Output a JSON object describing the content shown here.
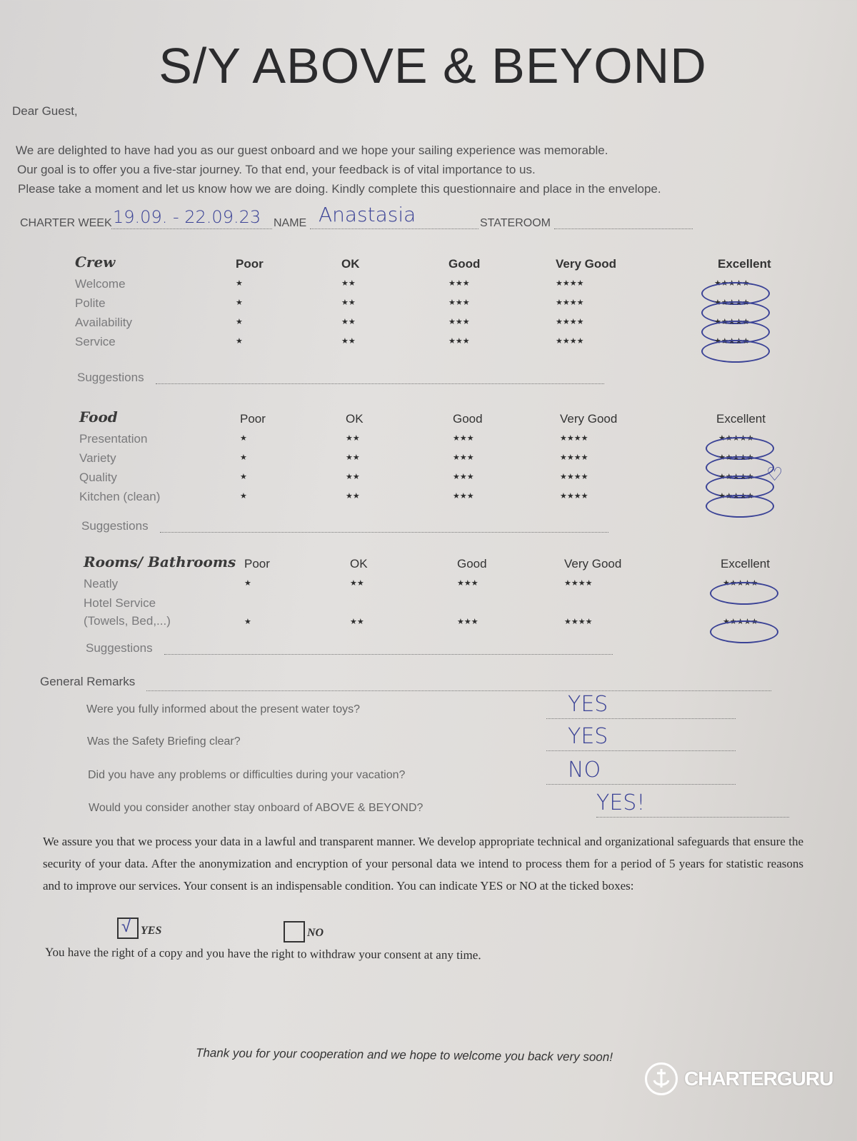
{
  "title": "S/Y ABOVE & BEYOND",
  "greeting": "Dear Guest,",
  "intro": [
    "We are delighted to have had you as our guest onboard and we hope your sailing experience was memorable.",
    "Our goal is to offer you a five-star journey. To that end, your feedback is of vital importance to us.",
    "Please take a moment and let us know how we are doing. Kindly complete this questionnaire and place in the envelope."
  ],
  "header_fields": {
    "charter_week_label": "CHARTER WEEK",
    "charter_week_value": "19.09. - 22.09.23",
    "name_label": "NAME",
    "name_value": "Anastasia",
    "stateroom_label": "STATEROOM",
    "stateroom_value": ""
  },
  "rating_columns": [
    "Poor",
    "OK",
    "Good",
    "Very Good",
    "Excellent"
  ],
  "rating_stars": [
    "★",
    "★★",
    "★★★",
    "★★★★",
    "★★★★★"
  ],
  "sections": [
    {
      "title": "Crew",
      "items": [
        {
          "label": "Welcome",
          "selected": 5
        },
        {
          "label": "Polite",
          "selected": 5
        },
        {
          "label": "Availability",
          "selected": 5
        },
        {
          "label": "Service",
          "selected": 5
        }
      ],
      "suggestions_label": "Suggestions"
    },
    {
      "title": "Food",
      "items": [
        {
          "label": "Presentation",
          "selected": 5
        },
        {
          "label": "Variety",
          "selected": 5
        },
        {
          "label": "Quality",
          "selected": 5,
          "note": "♡"
        },
        {
          "label": "Kitchen (clean)",
          "selected": 5
        }
      ],
      "suggestions_label": "Suggestions"
    },
    {
      "title": "Rooms/ Bathrooms",
      "items": [
        {
          "label": "Neatly",
          "selected": 5
        },
        {
          "label": "Hotel Service\n(Towels, Bed,...)",
          "selected": 5
        }
      ],
      "suggestions_label": "Suggestions"
    }
  ],
  "general_remarks_label": "General Remarks",
  "questions": [
    {
      "q": "Were you fully informed about the present water toys?",
      "a": "YES"
    },
    {
      "q": "Was the Safety Briefing clear?",
      "a": "YES"
    },
    {
      "q": "Did you have any problems or difficulties during your vacation?",
      "a": "NO"
    },
    {
      "q": "Would you consider another stay onboard of ABOVE & BEYOND?",
      "a": "YES!"
    }
  ],
  "privacy_text": "We assure you that we process your data in a lawful and transparent manner. We develop appropriate technical and organizational safeguards that ensure the security of your data. After the anonymization and encryption of your personal data we intend to process them for a period of 5 years for statistic reasons and to improve our services. Your consent is an indispensable condition. You can indicate YES or NO at the ticked boxes:",
  "consent": {
    "yes_label": "YES",
    "no_label": "NO",
    "yes_checked": true,
    "no_checked": false,
    "check_mark": "√"
  },
  "rights_text": "You have the right of a copy and you have the right to withdraw your consent at any time.",
  "thanks": "Thank you for your cooperation and we hope to welcome you back very soon!",
  "watermark": "CHARTERGURU",
  "colors": {
    "ink": "#3b4396",
    "paper": "#dedbd8"
  }
}
